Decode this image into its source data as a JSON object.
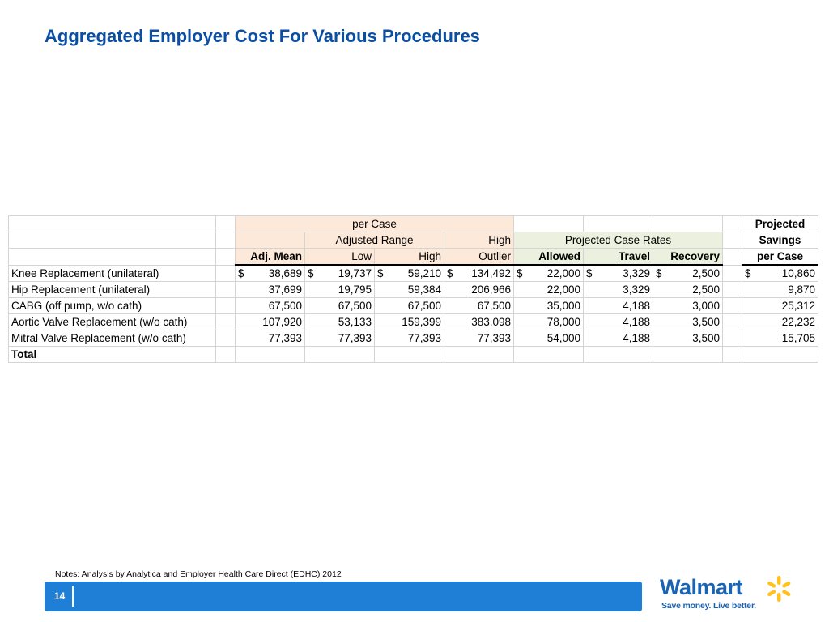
{
  "title": "Aggregated Employer Cost For Various Procedures",
  "table": {
    "header_per_case": "per Case",
    "header_adjusted_range": "Adjusted Range",
    "header_high": "High",
    "header_projected_case_rates": "Projected Case Rates",
    "header_projected": "Projected",
    "header_savings": "Savings",
    "col_adj_mean": "Adj. Mean",
    "col_low": "Low",
    "col_high": "High",
    "col_outlier": "Outlier",
    "col_allowed": "Allowed",
    "col_travel": "Travel",
    "col_recovery": "Recovery",
    "col_per_case": "per Case",
    "currency": "$",
    "rows": [
      {
        "procedure": "Knee Replacement (unilateral)",
        "adj_mean": "38,689",
        "low": "19,737",
        "high": "59,210",
        "outlier": "134,492",
        "allowed": "22,000",
        "travel": "3,329",
        "recovery": "2,500",
        "savings": "10,860"
      },
      {
        "procedure": "Hip Replacement (unilateral)",
        "adj_mean": "37,699",
        "low": "19,795",
        "high": "59,384",
        "outlier": "206,966",
        "allowed": "22,000",
        "travel": "3,329",
        "recovery": "2,500",
        "savings": "9,870"
      },
      {
        "procedure": "CABG (off pump, w/o cath)",
        "adj_mean": "67,500",
        "low": "67,500",
        "high": "67,500",
        "outlier": "67,500",
        "allowed": "35,000",
        "travel": "4,188",
        "recovery": "3,000",
        "savings": "25,312"
      },
      {
        "procedure": "Aortic Valve Replacement (w/o cath)",
        "adj_mean": "107,920",
        "low": "53,133",
        "high": "159,399",
        "outlier": "383,098",
        "allowed": "78,000",
        "travel": "4,188",
        "recovery": "3,500",
        "savings": "22,232"
      },
      {
        "procedure": "Mitral Valve Replacement (w/o cath)",
        "adj_mean": "77,393",
        "low": "77,393",
        "high": "77,393",
        "outlier": "77,393",
        "allowed": "54,000",
        "travel": "4,188",
        "recovery": "3,500",
        "savings": "15,705"
      }
    ],
    "total_label": "Total"
  },
  "notes": "Notes: Analysis by Analytica and Employer Health Care Direct (EDHC) 2012",
  "footer": {
    "page_number": "14",
    "logo_text": "Walmart",
    "logo_tagline": "Save money. Live better.",
    "bar_color": "#1f7fd6",
    "logo_color": "#1a64b4",
    "spark_color": "#ffc220"
  }
}
